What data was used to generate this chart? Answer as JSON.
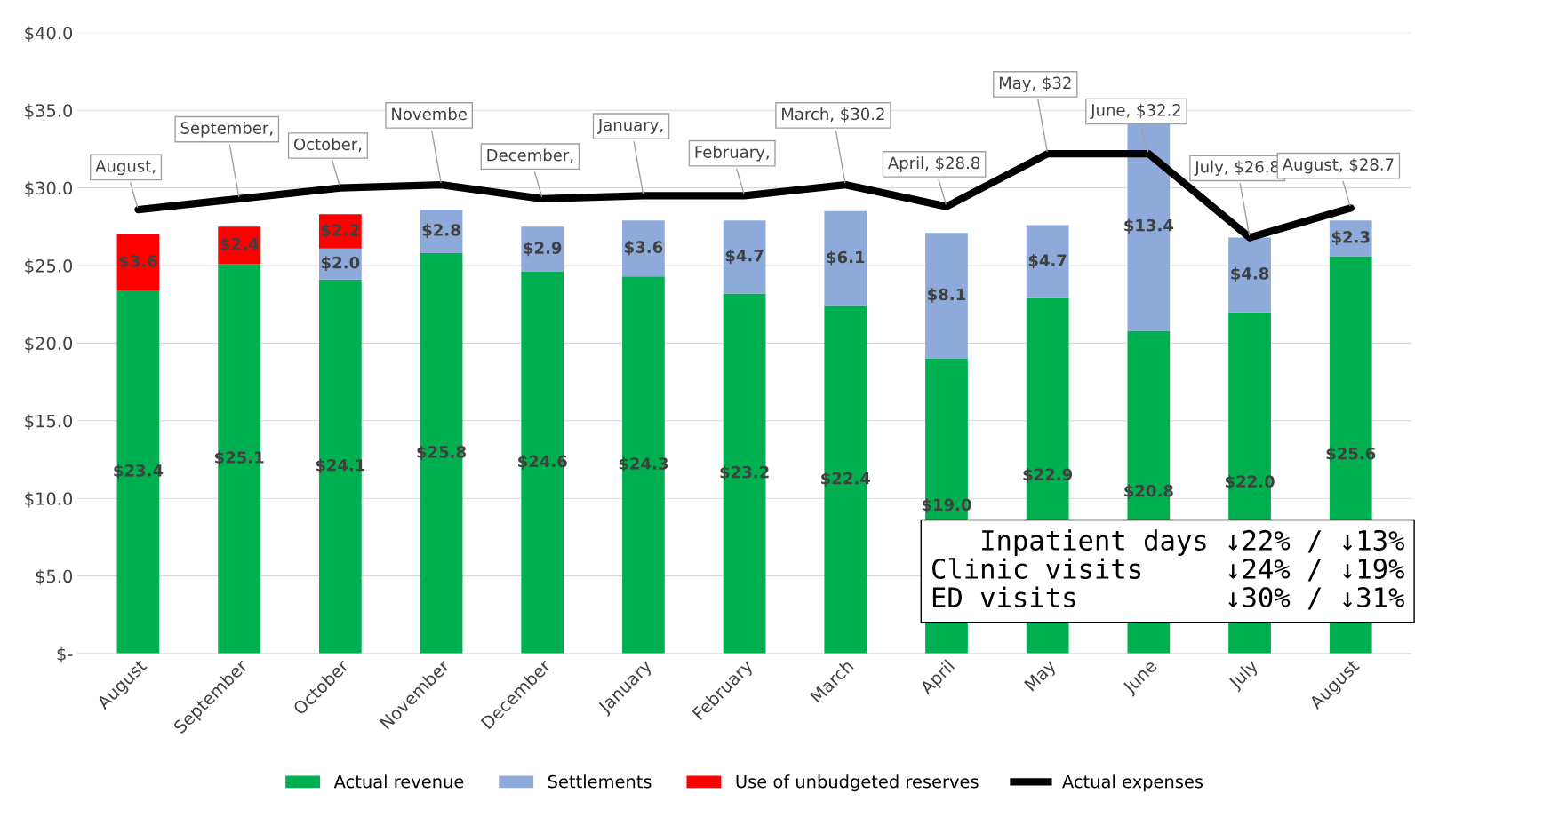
{
  "chart_data": {
    "type": "bar",
    "stacked": true,
    "categories": [
      "August",
      "September",
      "October",
      "November",
      "December",
      "January",
      "February",
      "March",
      "April",
      "May",
      "June",
      "July",
      "August"
    ],
    "series": [
      {
        "name": "Actual revenue",
        "color": "#00b050",
        "values": [
          23.4,
          25.1,
          24.1,
          25.8,
          24.6,
          24.3,
          23.2,
          22.4,
          19.0,
          22.9,
          20.8,
          22.0,
          25.6
        ],
        "value_labels": [
          "$23.4",
          "$25.1",
          "$24.1",
          "$25.8",
          "$24.6",
          "$24.3",
          "$23.2",
          "$22.4",
          "$19.0",
          "$22.9",
          "$20.8",
          "$22.0",
          "$25.6"
        ]
      },
      {
        "name": "Settlements",
        "color": "#8eaadb",
        "values": [
          null,
          null,
          2.0,
          2.8,
          2.9,
          3.6,
          4.7,
          6.1,
          8.1,
          4.7,
          13.4,
          4.8,
          2.3
        ],
        "value_labels": [
          null,
          null,
          "$2.0",
          "$2.8",
          "$2.9",
          "$3.6",
          "$4.7",
          "$6.1",
          "$8.1",
          "$4.7",
          "$13.4",
          "$4.8",
          "$2.3"
        ]
      },
      {
        "name": "Use of unbudgeted reserves",
        "color": "#ff0000",
        "values": [
          3.6,
          2.4,
          2.2,
          null,
          null,
          null,
          null,
          null,
          null,
          null,
          null,
          null,
          null
        ],
        "value_labels": [
          "$3.6",
          "$2.4",
          "$2.2",
          null,
          null,
          null,
          null,
          null,
          null,
          null,
          null,
          null,
          null
        ]
      },
      {
        "name": "Actual expenses",
        "type": "line",
        "color": "#000000",
        "values": [
          28.6,
          29.3,
          30.0,
          30.2,
          29.3,
          29.5,
          29.5,
          30.2,
          28.8,
          32.2,
          32.2,
          26.8,
          28.7
        ],
        "value_labels": [
          "August,",
          "September,",
          "October,",
          "Novembe",
          "December,",
          "January,",
          "February,",
          "March, $30.2",
          "April, $28.8",
          "May, $32",
          "June, $32.2",
          "July, $26.8",
          "August, $28.7"
        ]
      }
    ],
    "ylim": [
      0,
      40
    ],
    "yticks": [
      {
        "value": 0,
        "label": "$-"
      },
      {
        "value": 5,
        "label": "$5.0"
      },
      {
        "value": 10,
        "label": "$10.0"
      },
      {
        "value": 15,
        "label": "$15.0"
      },
      {
        "value": 20,
        "label": "$20.0"
      },
      {
        "value": 25,
        "label": "$25.0"
      },
      {
        "value": 30,
        "label": "$30.0"
      },
      {
        "value": 35,
        "label": "$35.0"
      },
      {
        "value": 40,
        "label": "$40.0"
      }
    ],
    "grid": "y",
    "legend": "bottom",
    "annotations": [
      "Inpatient days ↓22% / ↓13%\nClinic visits     ↓24% / ↓19%\nED visits         ↓30% / ↓31%"
    ]
  }
}
